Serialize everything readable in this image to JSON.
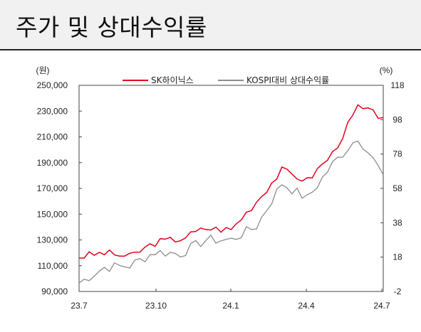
{
  "header": {
    "title": "주가 및 상대수익률"
  },
  "chart_data": {
    "type": "line",
    "title": "주가 및 상대수익률",
    "y_left_unit": "(원)",
    "y_right_unit": "(%)",
    "y_left_ticks": [
      "250,000",
      "230,000",
      "210,000",
      "190,000",
      "170,000",
      "150,000",
      "130,000",
      "110,000",
      "90,000"
    ],
    "y_right_ticks": [
      "118",
      "98",
      "78",
      "58",
      "38",
      "18",
      "-2"
    ],
    "x_ticks": [
      "23.7",
      "23.10",
      "24.1",
      "24.4",
      "24.7"
    ],
    "ylim_left": [
      90000,
      250000
    ],
    "ylim_right": [
      -2,
      118
    ],
    "legend_placement": "top",
    "series": [
      {
        "name": "SK하이닉스",
        "axis": "left",
        "color": "#e3001b",
        "x": [
          "23.7",
          "23.8",
          "23.9",
          "23.10",
          "23.11",
          "23.12",
          "24.1",
          "24.2",
          "24.3",
          "24.4",
          "24.5",
          "24.6",
          "24.7"
        ],
        "values": [
          117000,
          120000,
          117000,
          128000,
          131000,
          139000,
          138000,
          160000,
          184000,
          176000,
          197000,
          233000,
          225000
        ]
      },
      {
        "name": "KOSPI대비 상대수익률",
        "axis": "right",
        "color": "#8c8c8c",
        "x": [
          "23.7",
          "23.8",
          "23.9",
          "23.10",
          "23.11",
          "23.12",
          "24.1",
          "24.2",
          "24.3",
          "24.4",
          "24.5",
          "24.6",
          "24.7"
        ],
        "values": [
          3,
          12,
          13,
          21,
          20,
          28,
          28,
          36,
          61,
          52,
          72,
          88,
          66
        ]
      }
    ],
    "grid": false
  }
}
